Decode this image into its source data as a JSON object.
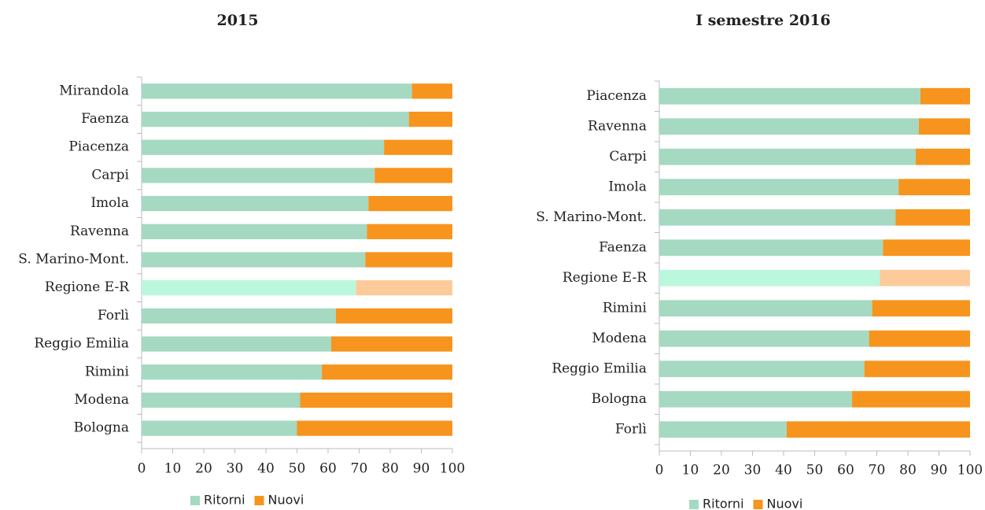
{
  "chart_data": [
    {
      "type": "stacked_bar_horizontal",
      "title": "2015",
      "categories": [
        "Mirandola",
        "Faenza",
        "Piacenza",
        "Carpi",
        "Imola",
        "Ravenna",
        "S. Marino-Mont.",
        "Regione E-R",
        "Forlì",
        "Reggio Emilia",
        "Rimini",
        "Modena",
        "Bologna"
      ],
      "series": [
        {
          "name": "Ritorni",
          "color": "#a5d9c1",
          "values": [
            87,
            86,
            78,
            75,
            73,
            72.5,
            72,
            69,
            62.5,
            61,
            58,
            51,
            50
          ],
          "colors": [
            "#a5d9c1",
            "#a5d9c1",
            "#a5d9c1",
            "#a5d9c1",
            "#a5d9c1",
            "#a5d9c1",
            "#a5d9c1",
            "#bbf7dc",
            "#a5d9c1",
            "#a5d9c1",
            "#a5d9c1",
            "#a5d9c1",
            "#a5d9c1"
          ]
        },
        {
          "name": "Nuovi",
          "color": "#f7941d",
          "values": [
            13,
            14,
            22,
            25,
            27,
            27.5,
            28,
            31,
            37.5,
            39,
            42,
            49,
            50
          ],
          "colors": [
            "#f7941d",
            "#f7941d",
            "#f7941d",
            "#f7941d",
            "#f7941d",
            "#f7941d",
            "#f7941d",
            "#fdcb9b",
            "#f7941d",
            "#f7941d",
            "#f7941d",
            "#f7941d",
            "#f7941d"
          ]
        }
      ],
      "xlim": [
        0,
        100
      ],
      "xticks": [
        0,
        10,
        20,
        30,
        40,
        50,
        60,
        70,
        80,
        90,
        100
      ],
      "legend": "bottom"
    },
    {
      "type": "stacked_bar_horizontal",
      "title": "I semestre 2016",
      "categories": [
        "Piacenza",
        "Ravenna",
        "Carpi",
        "Imola",
        "S. Marino-Mont.",
        "Faenza",
        "Regione E-R",
        "Rimini",
        "Modena",
        "Reggio Emilia",
        "Bologna",
        "Forlì"
      ],
      "series": [
        {
          "name": "Ritorni",
          "color": "#a5d9c1",
          "values": [
            84,
            83.5,
            82.5,
            77,
            76,
            72,
            71,
            68.5,
            67.5,
            66,
            62,
            41
          ],
          "colors": [
            "#a5d9c1",
            "#a5d9c1",
            "#a5d9c1",
            "#a5d9c1",
            "#a5d9c1",
            "#a5d9c1",
            "#bbf7dc",
            "#a5d9c1",
            "#a5d9c1",
            "#a5d9c1",
            "#a5d9c1",
            "#a5d9c1"
          ]
        },
        {
          "name": "Nuovi",
          "color": "#f7941d",
          "values": [
            16,
            16.5,
            17.5,
            23,
            24,
            28,
            29,
            31.5,
            32.5,
            34,
            38,
            59
          ],
          "colors": [
            "#f7941d",
            "#f7941d",
            "#f7941d",
            "#f7941d",
            "#f7941d",
            "#f7941d",
            "#fdcb9b",
            "#f7941d",
            "#f7941d",
            "#f7941d",
            "#f7941d",
            "#f7941d"
          ]
        }
      ],
      "xlim": [
        0,
        100
      ],
      "xticks": [
        0,
        10,
        20,
        30,
        40,
        50,
        60,
        70,
        80,
        90,
        100
      ],
      "legend": "bottom"
    }
  ]
}
